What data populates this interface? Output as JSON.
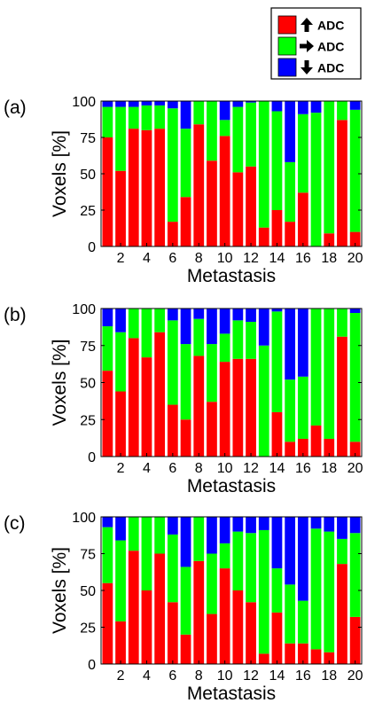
{
  "legend": {
    "items": [
      {
        "arrow": "up-arrow-icon",
        "label": "ADC",
        "color": "#ff0000"
      },
      {
        "arrow": "right-arrow-icon",
        "label": "ADC",
        "color": "#00ff00"
      },
      {
        "arrow": "down-arrow-icon",
        "label": "ADC",
        "color": "#0000ff"
      }
    ]
  },
  "chart_data": [
    {
      "type": "bar",
      "stacked": true,
      "panel_label": "(a)",
      "xlabel": "Metastasis",
      "ylabel": "Voxels [%]",
      "ylim": [
        0,
        100
      ],
      "yticks": [
        0,
        25,
        50,
        75,
        100
      ],
      "xticks": [
        2,
        4,
        6,
        8,
        10,
        12,
        14,
        16,
        18,
        20
      ],
      "categories": [
        1,
        2,
        3,
        4,
        5,
        6,
        7,
        8,
        9,
        10,
        11,
        12,
        13,
        14,
        15,
        16,
        17,
        18,
        19,
        20
      ],
      "series": [
        {
          "color": "#ff0000",
          "values": [
            75,
            52,
            81,
            80,
            81,
            17,
            34,
            84,
            59,
            76,
            51,
            55,
            13,
            25,
            17,
            37,
            0,
            9,
            87,
            10
          ]
        },
        {
          "color": "#00ff00",
          "values": [
            21,
            44,
            15,
            17,
            16,
            78,
            47,
            16,
            41,
            11,
            45,
            44,
            87,
            68,
            41,
            54,
            92,
            91,
            13,
            84
          ]
        },
        {
          "color": "#0000ff",
          "values": [
            4,
            4,
            4,
            3,
            3,
            5,
            19,
            0,
            0,
            13,
            4,
            1,
            0,
            7,
            42,
            9,
            8,
            0,
            0,
            6
          ]
        }
      ]
    },
    {
      "type": "bar",
      "stacked": true,
      "panel_label": "(b)",
      "xlabel": "Metastasis",
      "ylabel": "Voxels [%]",
      "ylim": [
        0,
        100
      ],
      "yticks": [
        0,
        25,
        50,
        75,
        100
      ],
      "xticks": [
        2,
        4,
        6,
        8,
        10,
        12,
        14,
        16,
        18,
        20
      ],
      "categories": [
        1,
        2,
        3,
        4,
        5,
        6,
        7,
        8,
        9,
        10,
        11,
        12,
        13,
        14,
        15,
        16,
        17,
        18,
        19,
        20
      ],
      "series": [
        {
          "color": "#ff0000",
          "values": [
            58,
            44,
            80,
            67,
            84,
            35,
            25,
            68,
            37,
            64,
            66,
            66,
            0,
            30,
            10,
            12,
            21,
            12,
            81,
            10
          ]
        },
        {
          "color": "#00ff00",
          "values": [
            30,
            40,
            20,
            33,
            16,
            57,
            51,
            25,
            39,
            19,
            26,
            25,
            75,
            68,
            42,
            42,
            79,
            88,
            19,
            87
          ]
        },
        {
          "color": "#0000ff",
          "values": [
            12,
            16,
            0,
            0,
            0,
            8,
            24,
            7,
            24,
            17,
            8,
            9,
            25,
            2,
            48,
            46,
            0,
            0,
            0,
            3
          ]
        }
      ]
    },
    {
      "type": "bar",
      "stacked": true,
      "panel_label": "(c)",
      "xlabel": "Metastasis",
      "ylabel": "Voxels [%]",
      "ylim": [
        0,
        100
      ],
      "yticks": [
        0,
        25,
        50,
        75,
        100
      ],
      "xticks": [
        2,
        4,
        6,
        8,
        10,
        12,
        14,
        16,
        18,
        20
      ],
      "categories": [
        1,
        2,
        3,
        4,
        5,
        6,
        7,
        8,
        9,
        10,
        11,
        12,
        13,
        14,
        15,
        16,
        17,
        18,
        19,
        20
      ],
      "series": [
        {
          "color": "#ff0000",
          "values": [
            55,
            29,
            77,
            50,
            75,
            42,
            20,
            70,
            34,
            65,
            50,
            42,
            7,
            35,
            14,
            14,
            10,
            8,
            68,
            32
          ]
        },
        {
          "color": "#00ff00",
          "values": [
            38,
            55,
            23,
            50,
            25,
            46,
            46,
            30,
            41,
            17,
            40,
            47,
            84,
            30,
            40,
            29,
            82,
            82,
            17,
            57
          ]
        },
        {
          "color": "#0000ff",
          "values": [
            7,
            16,
            0,
            0,
            0,
            12,
            34,
            0,
            25,
            18,
            10,
            11,
            9,
            35,
            46,
            57,
            8,
            10,
            15,
            11
          ]
        }
      ]
    }
  ]
}
